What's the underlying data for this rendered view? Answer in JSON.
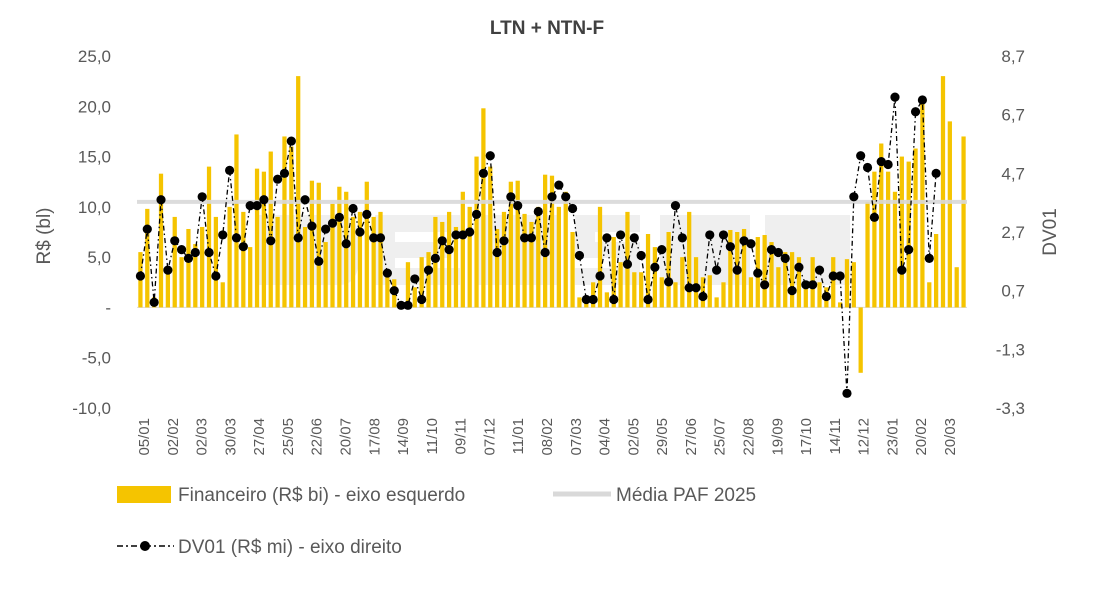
{
  "chart_data": {
    "type": "bar",
    "title": "LTN + NTN-F",
    "ylabel_left": "R$ (bl)",
    "ylabel_right": "DV01",
    "left_axis": {
      "min": -10,
      "max": 25,
      "tick_labels": [
        "25,0",
        "20,0",
        "15,0",
        "10,0",
        "5,0",
        "-",
        "-5,0",
        "-10,0"
      ]
    },
    "right_axis": {
      "min": -3.3,
      "max": 8.7,
      "tick_labels": [
        "8,7",
        "6,7",
        "4,7",
        "2,7",
        "0,7",
        "-1,3",
        "-3,3"
      ]
    },
    "x_tick_labels": [
      "05/01",
      "02/02",
      "02/03",
      "30/03",
      "27/04",
      "25/05",
      "22/06",
      "20/07",
      "17/08",
      "14/09",
      "11/10",
      "09/11",
      "07/12",
      "11/01",
      "08/02",
      "07/03",
      "04/04",
      "02/05",
      "29/05",
      "27/06",
      "25/07",
      "22/08",
      "19/09",
      "17/10",
      "14/11",
      "12/12",
      "23/01",
      "20/02",
      "20/03"
    ],
    "paf_average": 10.5,
    "series": [
      {
        "name": "Financeiro (R$ bi) - eixo esquerdo",
        "kind": "bar",
        "color": "#F5C400",
        "values": [
          5.5,
          9.8,
          1.0,
          13.3,
          3.5,
          9.0,
          5.0,
          7.8,
          6.3,
          8.0,
          14.0,
          9.0,
          2.5,
          10.0,
          17.2,
          9.5,
          6.0,
          13.8,
          13.5,
          15.5,
          9.0,
          17.0,
          16.0,
          23.0,
          8.0,
          12.6,
          12.4,
          6.5,
          10.3,
          12.0,
          11.5,
          9.0,
          9.5,
          12.5,
          9.0,
          9.5,
          3.0,
          2.8,
          0.5,
          4.5,
          2.0,
          5.0,
          5.5,
          9.0,
          8.5,
          9.5,
          8.0,
          11.5,
          10.0,
          15.0,
          19.8,
          14.0,
          7.8,
          9.5,
          12.5,
          12.6,
          9.3,
          8.5,
          10.0,
          13.2,
          13.1,
          10.0,
          11.5,
          7.5,
          1.0,
          1.0,
          2.5,
          10.0,
          1.5,
          7.0,
          4.5,
          9.5,
          3.5,
          3.5,
          7.3,
          6.0,
          3.0,
          7.5,
          2.5,
          5.0,
          9.5,
          5.0,
          3.0,
          3.2,
          1.0,
          2.5,
          7.7,
          7.5,
          7.8,
          3.0,
          7.0,
          7.2,
          6.5,
          4.0,
          5.5,
          5.5,
          5.0,
          2.0,
          5.0,
          2.5,
          2.0,
          5.0,
          0.5,
          4.8,
          4.5,
          -6.5,
          10.5,
          13.5,
          16.3,
          13.5,
          11.5,
          15.0,
          14.5,
          15.8,
          21.0,
          2.5,
          7.3,
          23.0,
          18.5,
          4.0,
          17.0
        ]
      },
      {
        "name": "DV01 (R$ mi) - eixo direito",
        "kind": "line",
        "color": "#000000",
        "values": [
          1.2,
          2.8,
          0.3,
          3.8,
          1.4,
          2.4,
          2.1,
          1.8,
          2.0,
          3.9,
          2.0,
          1.2,
          2.6,
          4.8,
          2.5,
          2.2,
          3.6,
          3.6,
          3.8,
          2.4,
          4.5,
          4.7,
          5.8,
          2.5,
          3.8,
          2.9,
          1.7,
          2.8,
          3.0,
          3.2,
          2.3,
          3.5,
          2.7,
          3.3,
          2.5,
          2.5,
          1.3,
          0.7,
          0.2,
          0.2,
          1.1,
          0.4,
          1.4,
          1.8,
          2.4,
          2.1,
          2.6,
          2.6,
          2.7,
          3.3,
          4.7,
          5.3,
          2.0,
          2.4,
          3.9,
          3.6,
          2.5,
          2.5,
          3.4,
          2.0,
          3.9,
          4.3,
          3.9,
          3.5,
          1.9,
          0.4,
          0.4,
          1.2,
          2.5,
          0.4,
          2.6,
          1.6,
          2.5,
          1.9,
          0.4,
          1.5,
          2.1,
          1.0,
          3.6,
          2.5,
          0.8,
          0.8,
          0.5,
          2.6,
          1.4,
          2.6,
          2.2,
          1.4,
          2.4,
          2.3,
          1.3,
          0.9,
          2.1,
          2.0,
          1.8,
          0.7,
          1.5,
          0.9,
          0.9,
          1.4,
          0.5,
          1.2,
          1.2,
          -2.8,
          3.9,
          5.3,
          4.9,
          3.2,
          5.1,
          5.0,
          7.3,
          1.4,
          2.1,
          6.8,
          7.2,
          1.8,
          4.7
        ]
      },
      {
        "name": "Média PAF 2025",
        "kind": "line",
        "color": "#D9D9D9"
      }
    ],
    "legend_position": "bottom"
  }
}
